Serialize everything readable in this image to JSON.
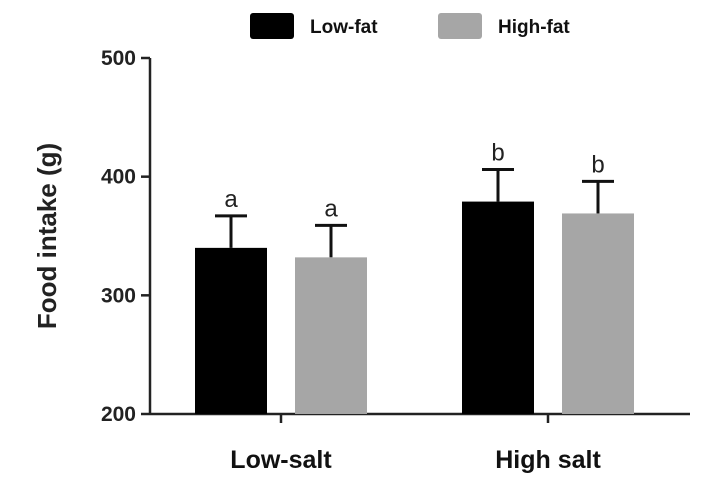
{
  "colors": {
    "low_fat": "#000000",
    "high_fat": "#a6a6a6",
    "axis": "#222222",
    "background": "#ffffff"
  },
  "chart_data": {
    "type": "bar",
    "title": "",
    "xlabel": "",
    "ylabel": "Food intake (g)",
    "ylim": [
      200,
      500
    ],
    "yticks": [
      200,
      300,
      400,
      500
    ],
    "categories": [
      "Low-salt",
      "High salt"
    ],
    "series": [
      {
        "name": "Low-fat",
        "values": [
          340,
          379
        ],
        "errors": [
          27,
          27
        ],
        "sig": [
          "a",
          "b"
        ],
        "color": "#000000"
      },
      {
        "name": "High-fat",
        "values": [
          332,
          369
        ],
        "errors": [
          27,
          27
        ],
        "sig": [
          "a",
          "b"
        ],
        "color": "#a6a6a6"
      }
    ],
    "legend": {
      "position": "top-center"
    },
    "grid": false
  }
}
